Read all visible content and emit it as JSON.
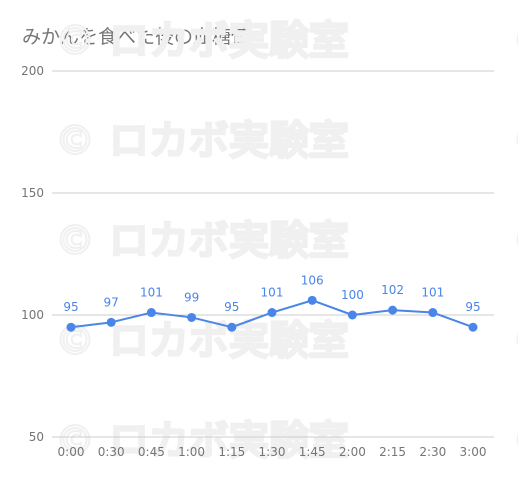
{
  "watermark": {
    "text": "© ロカボ実験室"
  },
  "chart_data": {
    "type": "line",
    "title": "みかんを食べた後の血糖値",
    "xlabel": "",
    "ylabel": "",
    "categories": [
      "0:00",
      "0:30",
      "0:45",
      "1:00",
      "1:15",
      "1:30",
      "1:45",
      "2:00",
      "2:15",
      "2:30",
      "3:00"
    ],
    "series": [
      {
        "values": [
          95,
          97,
          101,
          99,
          95,
          101,
          106,
          100,
          102,
          101,
          95
        ],
        "color": "#4a86e8"
      }
    ],
    "ylim": [
      50,
      200
    ],
    "yticks": [
      50,
      100,
      150,
      200
    ],
    "grid": true,
    "data_labels": true,
    "legend": "none",
    "colors": {
      "line": "#4a86e8",
      "grid": "#cccccc",
      "tick_label": "#757575",
      "data_label": "#4a86e8",
      "title": "#757575"
    }
  }
}
